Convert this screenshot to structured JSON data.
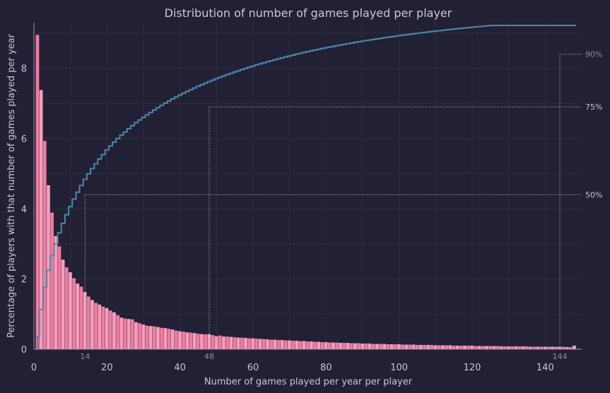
{
  "chart_data": {
    "type": "bar",
    "title": "Distribution of number of games played per player",
    "xlabel": "Number of games played per year per player",
    "ylabel": "Percentage of players with that number of games played per year",
    "xlim": [
      0,
      150
    ],
    "ylim": [
      0,
      9.3
    ],
    "x_ticks": [
      0,
      20,
      40,
      60,
      80,
      100,
      120,
      140
    ],
    "y_ticks": [
      0,
      2,
      4,
      6,
      8
    ],
    "grid": true,
    "bar_color": "#f07ca0",
    "bar_color_alt": "#f4a0bc",
    "cdf_color": "#4b87a8",
    "series": [
      {
        "kind": "histogram",
        "x_start": 1,
        "values": [
          8.95,
          7.38,
          5.93,
          4.67,
          3.89,
          3.22,
          2.93,
          2.55,
          2.33,
          2.19,
          2.02,
          1.87,
          1.78,
          1.63,
          1.5,
          1.4,
          1.32,
          1.27,
          1.21,
          1.17,
          1.1,
          1.05,
          0.97,
          0.9,
          0.87,
          0.86,
          0.85,
          0.77,
          0.74,
          0.7,
          0.67,
          0.66,
          0.65,
          0.63,
          0.61,
          0.6,
          0.58,
          0.56,
          0.53,
          0.51,
          0.5,
          0.48,
          0.47,
          0.46,
          0.44,
          0.43,
          0.42,
          0.43,
          0.4,
          0.37,
          0.39,
          0.36,
          0.36,
          0.35,
          0.34,
          0.33,
          0.33,
          0.32,
          0.31,
          0.31,
          0.3,
          0.29,
          0.29,
          0.28,
          0.27,
          0.27,
          0.26,
          0.26,
          0.25,
          0.25,
          0.24,
          0.24,
          0.23,
          0.23,
          0.22,
          0.22,
          0.21,
          0.21,
          0.2,
          0.2,
          0.19,
          0.19,
          0.19,
          0.18,
          0.18,
          0.18,
          0.17,
          0.17,
          0.17,
          0.16,
          0.16,
          0.16,
          0.15,
          0.15,
          0.15,
          0.15,
          0.14,
          0.14,
          0.14,
          0.14,
          0.13,
          0.13,
          0.13,
          0.13,
          0.12,
          0.12,
          0.12,
          0.12,
          0.12,
          0.11,
          0.11,
          0.11,
          0.11,
          0.11,
          0.1,
          0.1,
          0.1,
          0.1,
          0.1,
          0.1,
          0.09,
          0.09,
          0.09,
          0.09,
          0.09,
          0.09,
          0.09,
          0.08,
          0.08,
          0.08,
          0.08,
          0.08,
          0.08,
          0.08,
          0.08,
          0.07,
          0.07,
          0.07,
          0.07,
          0.07,
          0.07,
          0.07,
          0.07,
          0.07,
          0.07,
          0.06,
          0.06,
          0.1
        ]
      },
      {
        "kind": "cumulative",
        "y_scale_max_percent": 100
      }
    ],
    "percentile_markers": [
      {
        "label": "50%",
        "x": 14
      },
      {
        "label": "75%",
        "x": 48
      },
      {
        "label": "90%",
        "x": 144
      }
    ]
  }
}
